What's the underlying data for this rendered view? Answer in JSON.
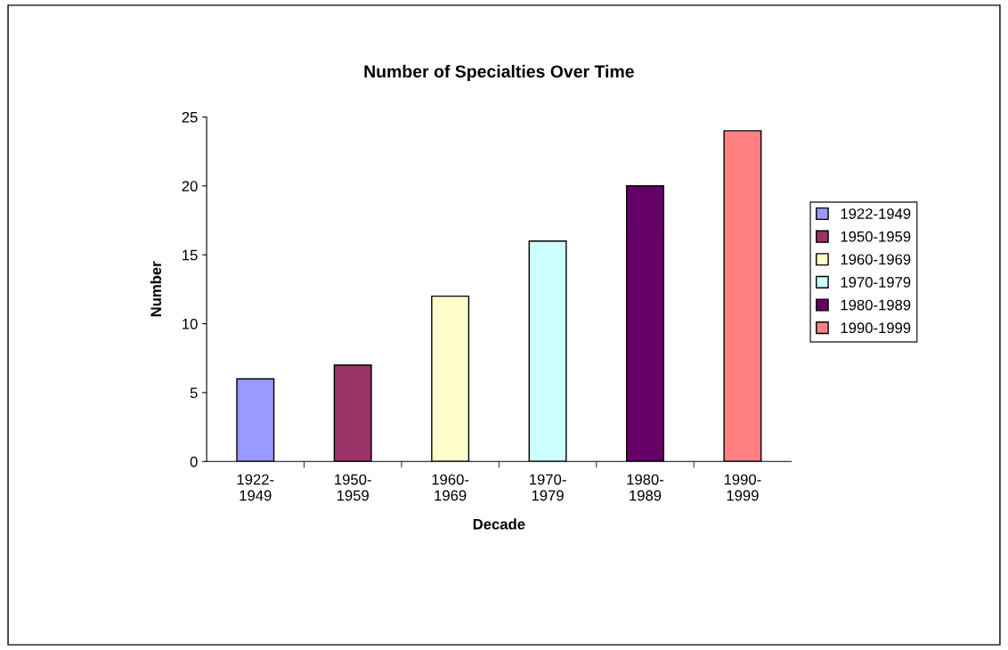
{
  "chart_data": {
    "type": "bar",
    "title": "Number of Specialties Over Time",
    "xlabel": "Decade",
    "ylabel": "Number",
    "categories": [
      "1922-1949",
      "1950-1959",
      "1960-1969",
      "1970-1979",
      "1980-1989",
      "1990-1999"
    ],
    "series": [
      {
        "name": "1922-1949",
        "color": "#9999ff",
        "values": [
          6,
          null,
          null,
          null,
          null,
          null
        ]
      },
      {
        "name": "1950-1959",
        "color": "#993366",
        "values": [
          null,
          7,
          null,
          null,
          null,
          null
        ]
      },
      {
        "name": "1960-1969",
        "color": "#ffffcc",
        "values": [
          null,
          null,
          12,
          null,
          null,
          null
        ]
      },
      {
        "name": "1970-1979",
        "color": "#ccffff",
        "values": [
          null,
          null,
          null,
          16,
          null,
          null
        ]
      },
      {
        "name": "1980-1989",
        "color": "#660066",
        "values": [
          null,
          null,
          null,
          null,
          20,
          null
        ]
      },
      {
        "name": "1990-1999",
        "color": "#ff8080",
        "values": [
          null,
          null,
          null,
          null,
          null,
          24
        ]
      }
    ],
    "ylim": [
      0,
      25
    ],
    "yticks": [
      0,
      5,
      10,
      15,
      20,
      25
    ],
    "grid": false,
    "legend": "right"
  }
}
